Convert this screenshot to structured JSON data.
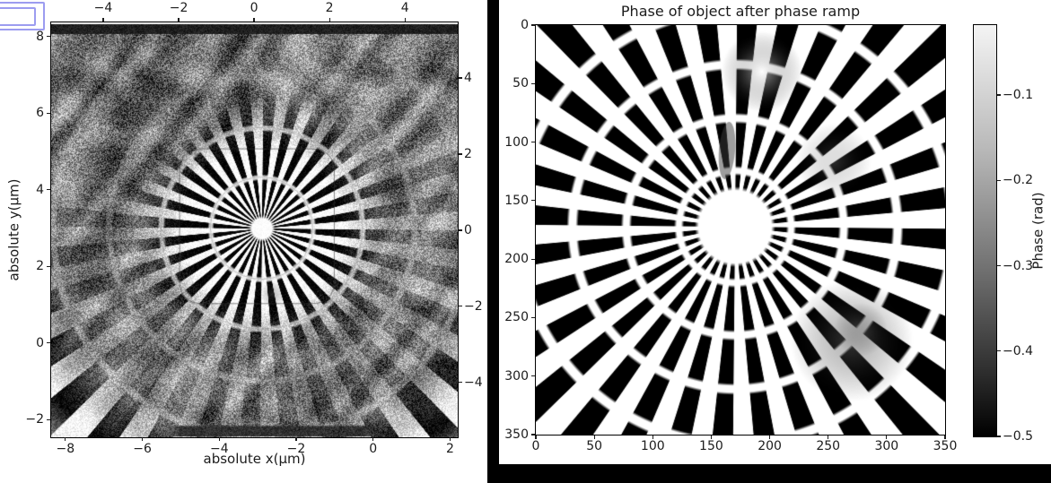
{
  "decorations": {
    "partial_window_outline": {
      "color": "#9c9cf0",
      "description": "two nested rectangle outlines clipped at the top-left corner"
    }
  },
  "chart_data": [
    {
      "id": "left-reconstruction",
      "type": "heatmap",
      "title": "",
      "xlabel": "absolute x(µm)",
      "ylabel": "absolute y(µm)",
      "x_ticks": [
        -8,
        -6,
        -4,
        -2,
        0,
        2
      ],
      "y_ticks": [
        8,
        6,
        4,
        2,
        0,
        -2
      ],
      "x_range": [
        -8.37,
        2.2
      ],
      "y_range": [
        -2.46,
        8.37
      ],
      "top_axis_ticks": [
        -4,
        -2,
        0,
        2,
        4
      ],
      "top_axis_range": [
        -5.38,
        5.4
      ],
      "right_axis_ticks": [
        4,
        2,
        0,
        -2,
        -4
      ],
      "right_axis_range": [
        -5.44,
        5.46
      ],
      "colormap": "gray",
      "grid": false,
      "content": {
        "pattern": "Siemens star resolution target, noisy reconstructed amplitude/phase image",
        "star_center_x_um": -2.9,
        "star_center_y_um": 3.0,
        "n_spokes": 32,
        "ring_gap_radii_um": [
          1.33,
          2.62,
          3.97,
          5.44
        ],
        "center_disk_radius_um": 0.26,
        "scan_outline_um": {
          "x0": -5.03,
          "y0": 1.03,
          "x1": -1.01,
          "y1": 5.07
        }
      }
    },
    {
      "id": "right-phase",
      "type": "heatmap",
      "title": "Phase of object after phase ramp",
      "xlabel": "",
      "ylabel": "",
      "x_ticks": [
        0,
        50,
        100,
        150,
        200,
        250,
        300,
        350
      ],
      "y_ticks": [
        0,
        50,
        100,
        150,
        200,
        250,
        300,
        350
      ],
      "x_range": [
        0,
        350
      ],
      "y_range": [
        0,
        350
      ],
      "colormap": "gray",
      "grid": false,
      "colorbar": {
        "label": "Phase (rad)",
        "ticks": [
          -0.1,
          -0.2,
          -0.3,
          -0.4,
          -0.5
        ],
        "vmin": -0.5,
        "vmax": -0.018
      },
      "content": {
        "pattern": "Siemens star phase object, smooth (blurred), black spokes on white",
        "star_center_x": 170,
        "star_center_y": 172,
        "n_spokes": 32,
        "ring_gap_radii": [
          48,
          93,
          139,
          186
        ],
        "center_disk_radius": 31
      }
    }
  ]
}
